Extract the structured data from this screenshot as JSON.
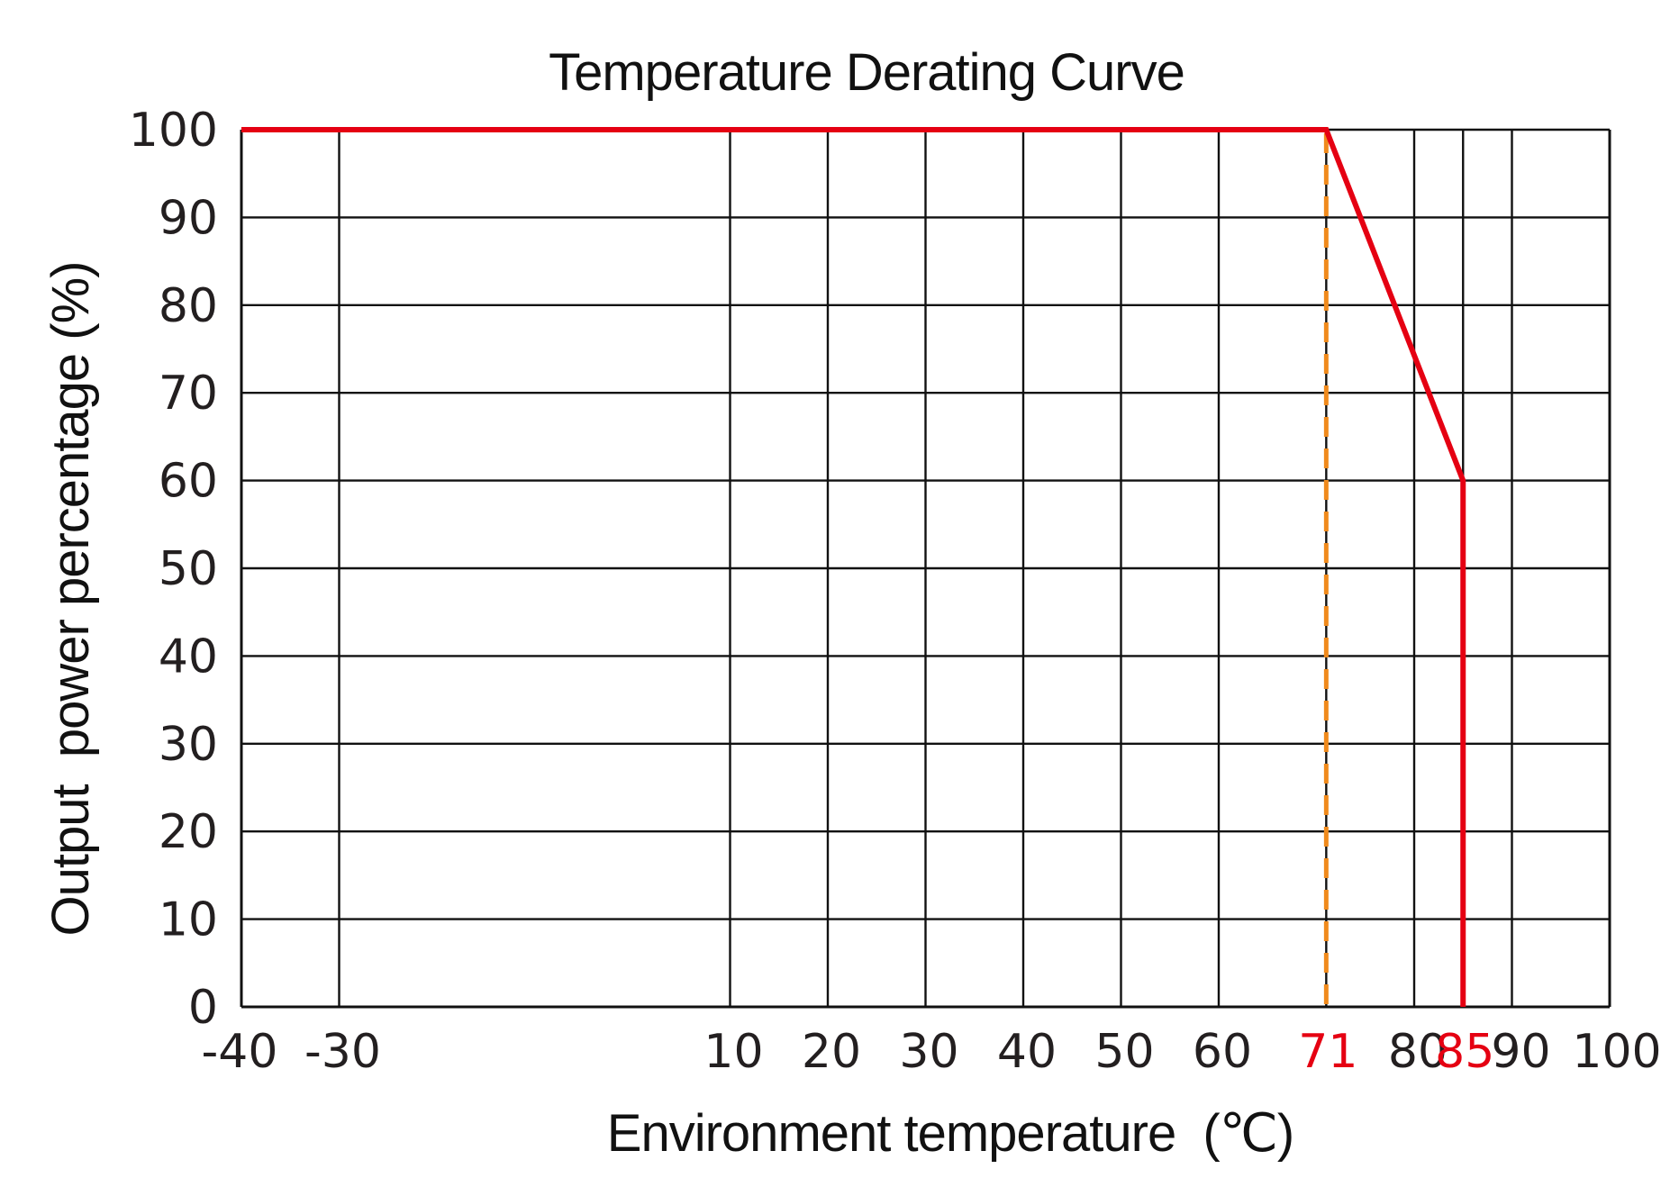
{
  "chart_data": {
    "type": "line",
    "title": "Temperature Derating Curve",
    "xlabel": "Environment temperature  (℃)",
    "ylabel": "Output  power percentage (%)",
    "x_ticks": [
      -40,
      -30,
      10,
      20,
      30,
      40,
      50,
      60,
      80,
      90,
      100
    ],
    "x_ticks_highlight": [
      71,
      85
    ],
    "y_ticks": [
      0,
      10,
      20,
      30,
      40,
      50,
      60,
      70,
      80,
      90,
      100
    ],
    "xlim": [
      -40,
      100
    ],
    "ylim": [
      0,
      100
    ],
    "grid": true,
    "series": [
      {
        "x": [
          -40,
          71,
          85,
          85
        ],
        "y": [
          100,
          100,
          60,
          0
        ],
        "color": "#e50012"
      }
    ],
    "reference_line": {
      "x": 71,
      "style": "dashed",
      "color": "#f08a1c"
    },
    "colors": {
      "curve": "#e50012",
      "reference": "#f08a1c",
      "highlight_tick": "#e50012",
      "grid": "#111111",
      "text": "#231f20"
    }
  }
}
